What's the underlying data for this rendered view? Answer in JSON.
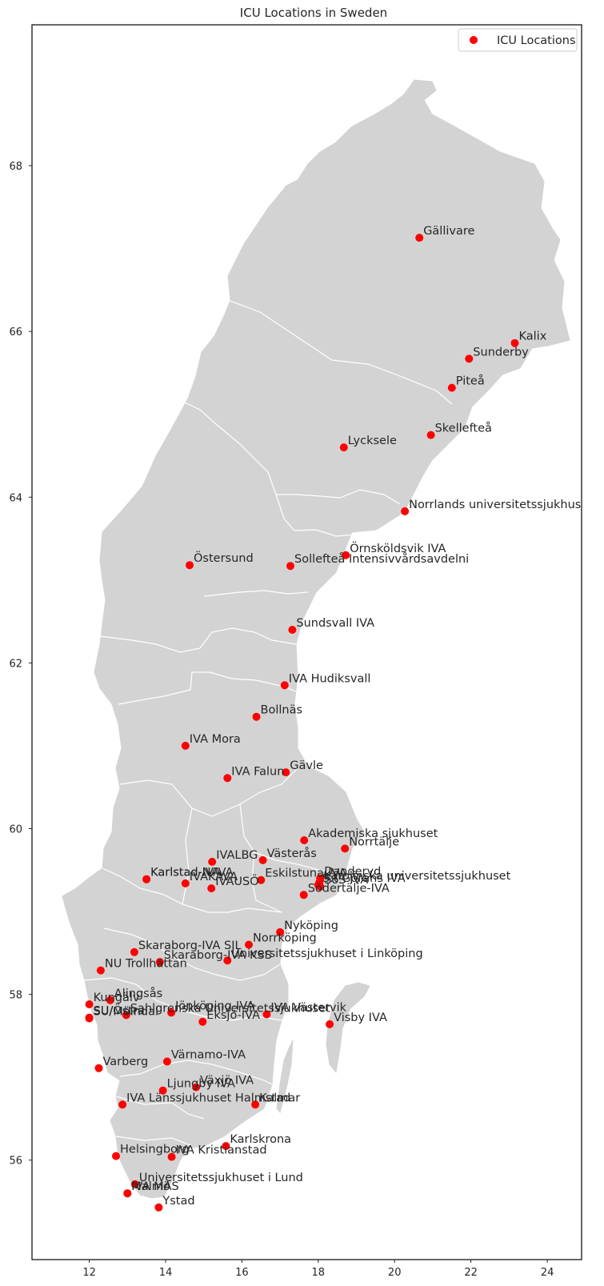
{
  "chart_data": {
    "type": "scatter",
    "title": "ICU Locations in Sweden",
    "xlabel": "",
    "ylabel": "",
    "xlim": [
      10.5,
      24.9
    ],
    "ylim": [
      54.8,
      69.7
    ],
    "x_ticks": [
      12,
      14,
      16,
      18,
      20,
      22,
      24
    ],
    "y_ticks": [
      56,
      58,
      60,
      62,
      64,
      66,
      68
    ],
    "grid": false,
    "legend": {
      "position": "top-right",
      "entries": [
        "ICU Locations"
      ]
    },
    "colors": {
      "marker": "#ff0000",
      "land": "#d3d3d3",
      "border": "#ffffff"
    },
    "series": [
      {
        "name": "ICU Locations",
        "points": [
          {
            "label": "Gällivare",
            "x": 20.65,
            "y": 67.13
          },
          {
            "label": "Kalix",
            "x": 23.15,
            "y": 65.86
          },
          {
            "label": "Sunderby",
            "x": 21.95,
            "y": 65.67
          },
          {
            "label": "Piteå",
            "x": 21.5,
            "y": 65.32
          },
          {
            "label": "Skellefteå",
            "x": 20.95,
            "y": 64.75
          },
          {
            "label": "Lycksele",
            "x": 18.67,
            "y": 64.6
          },
          {
            "label": "Norrlands universitetssjukhus",
            "x": 20.27,
            "y": 63.83
          },
          {
            "label": "Örnsköldsvik IVA",
            "x": 18.72,
            "y": 63.3
          },
          {
            "label": "Östersund",
            "x": 14.63,
            "y": 63.18
          },
          {
            "label": "Sollefteå Intensivvårdsavdelni",
            "x": 17.27,
            "y": 63.17
          },
          {
            "label": "Sundsvall IVA",
            "x": 17.32,
            "y": 62.4
          },
          {
            "label": "IVA Hudiksvall",
            "x": 17.12,
            "y": 61.73
          },
          {
            "label": "Bollnäs",
            "x": 16.38,
            "y": 61.35
          },
          {
            "label": "IVA Mora",
            "x": 14.52,
            "y": 61.0
          },
          {
            "label": "Gävle",
            "x": 17.15,
            "y": 60.68
          },
          {
            "label": "IVA Falun",
            "x": 15.62,
            "y": 60.61
          },
          {
            "label": "Akademiska sjukhuset",
            "x": 17.63,
            "y": 59.86
          },
          {
            "label": "Norrtälje",
            "x": 18.7,
            "y": 59.76
          },
          {
            "label": "Västerås",
            "x": 16.55,
            "y": 59.62
          },
          {
            "label": "IVALBG",
            "x": 15.22,
            "y": 59.6
          },
          {
            "label": "Karlstad-NAVA",
            "x": 13.5,
            "y": 59.39
          },
          {
            "label": "Karlstad-IVA",
            "x": 13.5,
            "y": 59.39
          },
          {
            "label": "IVAKAVA",
            "x": 14.52,
            "y": 59.34
          },
          {
            "label": "Eskilstuna-IVA",
            "x": 16.5,
            "y": 59.38
          },
          {
            "label": "Danderyd",
            "x": 18.05,
            "y": 59.4
          },
          {
            "label": "SöS IVA",
            "x": 18.05,
            "y": 59.3
          },
          {
            "label": "Karolinska universitetssjukhuset",
            "x": 18.03,
            "y": 59.35
          },
          {
            "label": "S:t Görans IVA",
            "x": 18.0,
            "y": 59.32
          },
          {
            "label": "IVAUSÖ",
            "x": 15.2,
            "y": 59.28
          },
          {
            "label": "Södertälje-IVA",
            "x": 17.62,
            "y": 59.2
          },
          {
            "label": "Nyköping",
            "x": 17.0,
            "y": 58.75
          },
          {
            "label": "Norrköping",
            "x": 16.18,
            "y": 58.6
          },
          {
            "label": "Skaraborg-IVA SIL",
            "x": 13.18,
            "y": 58.51
          },
          {
            "label": "Universitetssjukhuset i Linköping",
            "x": 15.62,
            "y": 58.41
          },
          {
            "label": "Skaraborg-IVA KSS",
            "x": 13.85,
            "y": 58.39
          },
          {
            "label": "NU Trollhättan",
            "x": 12.3,
            "y": 58.29
          },
          {
            "label": "Alingsås",
            "x": 12.55,
            "y": 57.93
          },
          {
            "label": "Kungälv",
            "x": 12.0,
            "y": 57.88
          },
          {
            "label": "Jönköping-IVA",
            "x": 14.15,
            "y": 57.78
          },
          {
            "label": "Sahlgrenska Universitetssjukhuset",
            "x": 12.97,
            "y": 57.75
          },
          {
            "label": "SU/Östra",
            "x": 12.0,
            "y": 57.72
          },
          {
            "label": "SU/Mölndal",
            "x": 12.0,
            "y": 57.71
          },
          {
            "label": "IVA Västervik",
            "x": 16.65,
            "y": 57.76
          },
          {
            "label": "Eksjö-IVA",
            "x": 14.97,
            "y": 57.67
          },
          {
            "label": "Visby IVA",
            "x": 18.3,
            "y": 57.64
          },
          {
            "label": "Värnamo-IVA",
            "x": 14.04,
            "y": 57.19
          },
          {
            "label": "Varberg",
            "x": 12.25,
            "y": 57.11
          },
          {
            "label": "Växjö IVA",
            "x": 14.8,
            "y": 56.88
          },
          {
            "label": "Ljungby IVA",
            "x": 13.93,
            "y": 56.84
          },
          {
            "label": "IVA Länssjukhuset Halmstad",
            "x": 12.87,
            "y": 56.67
          },
          {
            "label": "Kalmar",
            "x": 16.35,
            "y": 56.67
          },
          {
            "label": "Karlskrona",
            "x": 15.58,
            "y": 56.17
          },
          {
            "label": "Helsingborg",
            "x": 12.7,
            "y": 56.05
          },
          {
            "label": "IVA Kristianstad",
            "x": 14.16,
            "y": 56.04
          },
          {
            "label": "Universitetssjukhuset i Lund",
            "x": 13.2,
            "y": 55.71
          },
          {
            "label": "IVA MAS",
            "x": 13.0,
            "y": 55.6
          },
          {
            "label": "Malmö",
            "x": 13.0,
            "y": 55.6
          },
          {
            "label": "Ystad",
            "x": 13.82,
            "y": 55.43
          }
        ]
      }
    ]
  }
}
